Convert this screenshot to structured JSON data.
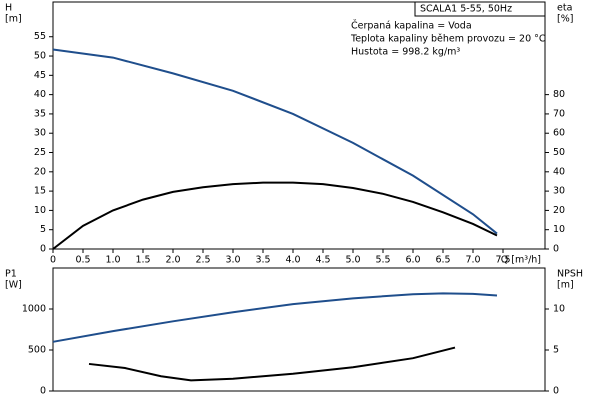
{
  "chart_data": [
    {
      "type": "line",
      "title": "SCALA1 5-55, 50Hz",
      "annotations": [
        "Čerpaná kapalina = Voda",
        "Teplota kapaliny během provozu = 20 °C",
        "Hustota = 998.2 kg/m³"
      ],
      "ylabel": [
        "H",
        "[m]"
      ],
      "y2label": [
        "eta",
        "[%]"
      ],
      "xlabel": "Q [m³/h]",
      "xlim": [
        0,
        8.2
      ],
      "ylim": [
        0,
        64
      ],
      "y2lim": [
        0,
        128
      ],
      "xticks": [
        0,
        0.5,
        {
          "value": 1,
          "label": "1.0"
        },
        1.5,
        {
          "value": 2,
          "label": "2.0"
        },
        2.5,
        {
          "value": 3,
          "label": "3.0"
        },
        3.5,
        {
          "value": 4,
          "label": "4.0"
        },
        4.5,
        {
          "value": 5,
          "label": "5.0"
        },
        5.5,
        {
          "value": 6,
          "label": "6.0"
        },
        6.5,
        {
          "value": 7,
          "label": "7.0"
        },
        7.5
      ],
      "yticks": [
        0,
        5,
        10,
        15,
        20,
        25,
        30,
        35,
        40,
        45,
        50,
        55
      ],
      "y2ticks": [
        0,
        10,
        20,
        30,
        40,
        50,
        60,
        70,
        80
      ],
      "series": [
        {
          "color": "#1f4e8c",
          "x": [
            0,
            1,
            2,
            3,
            4,
            5,
            6,
            7,
            7.4
          ],
          "values": [
            51.7,
            49.6,
            45.5,
            41,
            35,
            27.5,
            19,
            9,
            4
          ]
        },
        {
          "color": "#000000",
          "axis": "y2",
          "x": [
            0,
            0.5,
            1,
            1.5,
            2,
            2.5,
            3,
            3.5,
            4,
            4.5,
            5,
            5.5,
            6,
            6.5,
            7,
            7.4
          ],
          "values": [
            0,
            12,
            20,
            25.6,
            29.6,
            32,
            33.6,
            34.4,
            34.4,
            33.6,
            31.6,
            28.6,
            24.4,
            19,
            13,
            7
          ]
        }
      ]
    },
    {
      "type": "line",
      "ylabel": [
        "P1",
        "[W]"
      ],
      "y2label": [
        "NPSH",
        "[m]"
      ],
      "xlim": [
        0,
        8.2
      ],
      "ylim": [
        0,
        1500
      ],
      "y2lim": [
        0,
        15
      ],
      "yticks": [
        0,
        500,
        1000
      ],
      "y2ticks": [
        0,
        5,
        10
      ],
      "series": [
        {
          "color": "#1f4e8c",
          "x": [
            0,
            1,
            2,
            3,
            4,
            5,
            6,
            6.5,
            7,
            7.4
          ],
          "values": [
            600,
            730,
            850,
            960,
            1060,
            1130,
            1180,
            1190,
            1185,
            1165
          ]
        },
        {
          "color": "#000000",
          "axis": "y2",
          "x": [
            0.6,
            1.2,
            1.8,
            2.3,
            3,
            4,
            5,
            6,
            6.7
          ],
          "values": [
            3.3,
            2.8,
            1.8,
            1.3,
            1.5,
            2.1,
            2.9,
            4.0,
            5.3
          ]
        }
      ]
    }
  ]
}
